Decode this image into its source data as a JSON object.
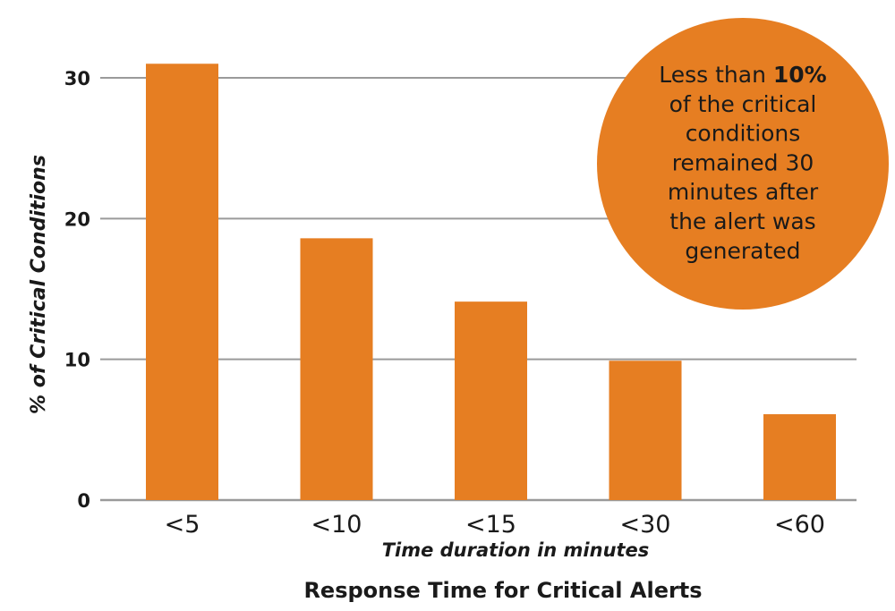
{
  "chart_data": {
    "type": "bar",
    "title": "Response Time for Critical Alerts",
    "xlabel": "Time duration in minutes",
    "ylabel": "% of Critical Conditions",
    "categories": [
      "<5",
      "<10",
      "<15",
      "<30",
      "<60"
    ],
    "values": [
      31,
      18.6,
      14.1,
      9.9,
      6.1
    ],
    "ylim": [
      0,
      30
    ],
    "yticks": [
      "0",
      "10",
      "20",
      "30"
    ],
    "grid": true,
    "bar_color": "#E67E22",
    "gridline_color": "#9a9a9a",
    "annotation": {
      "lines": [
        [
          "Less than ",
          "10%"
        ],
        [
          "of the critical"
        ],
        [
          "conditions"
        ],
        [
          "remained 30"
        ],
        [
          "minutes after"
        ],
        [
          "the alert was"
        ],
        [
          "generated"
        ]
      ],
      "circle_color": "#E67E22"
    }
  }
}
